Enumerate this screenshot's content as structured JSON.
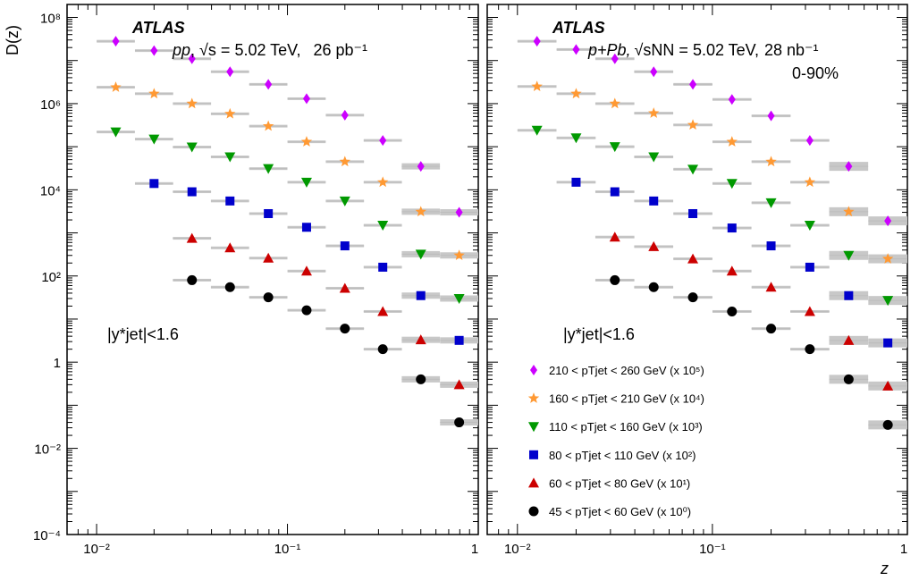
{
  "figure": {
    "ylabel": "D(z)",
    "xlabel": "z",
    "x_ticks": [
      "10⁻²",
      "10⁻¹",
      "1"
    ],
    "y_ticks": [
      "10⁻⁴",
      "10⁻²",
      "1",
      "10²",
      "10⁴",
      "10⁶",
      "10⁸"
    ]
  },
  "panels": [
    {
      "experiment": "ATLAS",
      "system": "pp",
      "energy": "√s = 5.02 TeV,",
      "lumi": "26 pb⁻¹",
      "centrality": "",
      "rapidity_cut": "|y*jet|<1.6"
    },
    {
      "experiment": "ATLAS",
      "system": "p+Pb,",
      "energy": "√sNN = 5.02 TeV,",
      "lumi": "28 nb⁻¹",
      "centrality": "0-90%",
      "rapidity_cut": "|y*jet|<1.6"
    }
  ],
  "legend": [
    {
      "label": "210 < pTjet < 260 GeV (x 10⁵)",
      "marker": "diamond",
      "color": "#cc00ff"
    },
    {
      "label": "160 < pTjet < 210 GeV (x 10⁴)",
      "marker": "star",
      "color": "#ff9933"
    },
    {
      "label": "110 < pTjet < 160 GeV (x 10³)",
      "marker": "triangle-down",
      "color": "#009900"
    },
    {
      "label": "80 < pTjet < 110 GeV (x 10²)",
      "marker": "square",
      "color": "#0000cc"
    },
    {
      "label": "60 < pTjet < 80 GeV (x 10¹)",
      "marker": "triangle-up",
      "color": "#cc0000"
    },
    {
      "label": "45 < pTjet < 60 GeV (x 10⁰)",
      "marker": "circle",
      "color": "#000000"
    }
  ],
  "chart_data": [
    {
      "type": "scatter",
      "x_scale": "log",
      "y_scale": "log",
      "xlim": [
        0.007,
        1.0
      ],
      "ylim": [
        0.0001,
        200000000
      ],
      "xlabel": "z",
      "ylabel": "D(z)",
      "x": [
        0.0126,
        0.02,
        0.0316,
        0.05,
        0.0794,
        0.126,
        0.2,
        0.316,
        0.5,
        0.794
      ],
      "series": [
        {
          "name": "210 < pTjet < 260 GeV (x 10⁵)",
          "values": [
            28000000,
            17000000,
            11000000,
            5500000,
            2800000,
            1300000,
            540000,
            140000,
            35000,
            3000
          ]
        },
        {
          "name": "160 < pTjet < 210 GeV (x 10⁴)",
          "values": [
            2400000,
            1700000,
            1000000,
            580000,
            300000,
            130000,
            45000,
            15000,
            3100,
            300
          ]
        },
        {
          "name": "110 < pTjet < 160 GeV (x 10³)",
          "values": [
            220000,
            150000,
            98000,
            58000,
            31000,
            15000,
            5500,
            1500,
            320,
            30
          ]
        },
        {
          "name": "80 < pTjet < 110 GeV (x 10²)",
          "values": [
            null,
            14000,
            9000,
            5500,
            2800,
            1350,
            500,
            160,
            35,
            3.2
          ]
        },
        {
          "name": "60 < pTjet < 80 GeV (x 10¹)",
          "values": [
            null,
            null,
            750,
            450,
            260,
            130,
            52,
            15,
            3.3,
            0.3
          ]
        },
        {
          "name": "45 < pTjet < 60 GeV (x 10⁰)",
          "values": [
            null,
            null,
            80,
            55,
            32,
            16,
            6,
            2,
            0.4,
            0.04
          ]
        }
      ]
    },
    {
      "type": "scatter",
      "x_scale": "log",
      "y_scale": "log",
      "xlim": [
        0.007,
        1.0
      ],
      "ylim": [
        0.0001,
        200000000
      ],
      "xlabel": "z",
      "ylabel": "D(z)",
      "x": [
        0.0126,
        0.02,
        0.0316,
        0.05,
        0.0794,
        0.126,
        0.2,
        0.316,
        0.5,
        0.794
      ],
      "series": [
        {
          "name": "210 < pTjet < 260 GeV (x 10⁵)",
          "values": [
            28000000,
            18000000,
            11000000,
            5500000,
            2800000,
            1250000,
            520000,
            140000,
            35000,
            1900
          ]
        },
        {
          "name": "160 < pTjet < 210 GeV (x 10⁴)",
          "values": [
            2500000,
            1700000,
            1000000,
            600000,
            320000,
            130000,
            45000,
            15000,
            3100,
            250
          ]
        },
        {
          "name": "110 < pTjet < 160 GeV (x 10³)",
          "values": [
            240000,
            160000,
            100000,
            58000,
            30000,
            14000,
            5000,
            1500,
            300,
            27
          ]
        },
        {
          "name": "80 < pTjet < 110 GeV (x 10²)",
          "values": [
            null,
            15000,
            9000,
            5500,
            2800,
            1300,
            500,
            160,
            35,
            2.8
          ]
        },
        {
          "name": "60 < pTjet < 80 GeV (x 10¹)",
          "values": [
            null,
            null,
            800,
            480,
            250,
            130,
            55,
            15,
            3.2,
            0.28
          ]
        },
        {
          "name": "45 < pTjet < 60 GeV (x 10⁰)",
          "values": [
            null,
            null,
            80,
            55,
            32,
            15,
            6,
            2,
            0.4,
            0.035
          ]
        }
      ]
    }
  ]
}
